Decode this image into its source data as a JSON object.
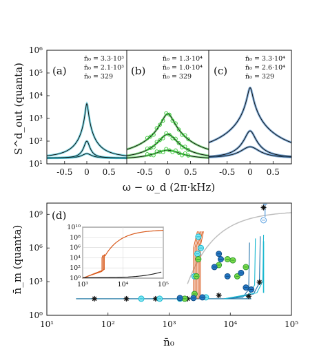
{
  "colors": {
    "cyan": "#19b8d0",
    "green": "#2ec42e",
    "blue": "#1f6fbf",
    "orange": "#d95a1c",
    "gray": "#bfbfbf",
    "black": "#111111"
  },
  "top": {
    "ylabel": "S^d_out (quanta)",
    "xlabel": "ω − ω_d (2π·kHz)",
    "xticks": [
      "-0.5",
      "0",
      "0.5"
    ],
    "yticks": [
      "10¹",
      "10²",
      "10³",
      "10⁴",
      "10⁵",
      "10⁶"
    ],
    "panels": [
      {
        "label": "(a)",
        "legend": [
          "n̄₀ = 3.3·10³",
          "n̄₀ = 2.1·10³",
          "n̄₀ = 329"
        ]
      },
      {
        "label": "(b)",
        "legend": [
          "n̄₀ = 1.3·10⁴",
          "n̄₀ = 1.0·10⁴",
          "n̄₀ = 329"
        ]
      },
      {
        "label": "(c)",
        "legend": [
          "n̄₀ = 3.3·10⁴",
          "n̄₀ = 2.6·10⁴",
          "n̄₀ = 329"
        ]
      }
    ]
  },
  "bottom": {
    "label": "(d)",
    "ylabel": "n̄_m (quanta)",
    "xlabel": "n̄₀",
    "xticks": [
      "10¹",
      "10²",
      "10³",
      "10⁴",
      "10⁵"
    ],
    "yticks": [
      "10⁰",
      "10³",
      "10⁶",
      "10⁹"
    ],
    "inset": {
      "xticks": [
        "10³",
        "10⁴",
        "10⁵"
      ],
      "yticks": [
        "10⁰",
        "10²",
        "10⁴",
        "10⁶",
        "10⁸",
        "10¹⁰"
      ]
    }
  },
  "chart_data": [
    {
      "type": "line",
      "title": "(a)",
      "xlabel": "ω − ω_d (2π·kHz)",
      "ylabel": "S^d_out (quanta)",
      "xlim": [
        -0.9,
        0.9
      ],
      "ylim_log10": [
        1,
        6
      ],
      "series": [
        {
          "name": "n̄₀ = 3.3·10³",
          "peak_log10": 3.65,
          "width": 0.03,
          "base_log10": 1.25
        },
        {
          "name": "n̄₀ = 2.1·10³",
          "peak_log10": 2.0,
          "width": 0.06,
          "base_log10": 1.25
        },
        {
          "name": "n̄₀ = 329",
          "peak_log10": 1.45,
          "width": 0.12,
          "base_log10": 1.25
        }
      ]
    },
    {
      "type": "line",
      "title": "(b)",
      "xlabel": "ω − ω_d (2π·kHz)",
      "xlim": [
        -0.9,
        0.9
      ],
      "ylim_log10": [
        1,
        6
      ],
      "series": [
        {
          "name": "n̄₀ = 1.3·10⁴",
          "peak_log10": 3.2,
          "width": 0.12,
          "base_log10": 1.2
        },
        {
          "name": "n̄₀ = 1.0·10⁴",
          "peak_log10": 2.3,
          "width": 0.18,
          "base_log10": 1.2
        },
        {
          "name": "n̄₀ = 329",
          "peak_log10": 1.6,
          "width": 0.3,
          "base_log10": 1.2
        }
      ]
    },
    {
      "type": "line",
      "title": "(c)",
      "xlabel": "ω − ω_d (2π·kHz)",
      "xlim": [
        -0.9,
        0.9
      ],
      "ylim_log10": [
        1,
        6
      ],
      "series": [
        {
          "name": "n̄₀ = 3.3·10⁴",
          "peak_log10": 4.35,
          "width": 0.05,
          "base_log10": 1.25
        },
        {
          "name": "n̄₀ = 2.6·10⁴",
          "peak_log10": 2.45,
          "width": 0.1,
          "base_log10": 1.25
        },
        {
          "name": "n̄₀ = 329",
          "peak_log10": 1.75,
          "width": 0.2,
          "base_log10": 1.25
        }
      ]
    },
    {
      "type": "scatter",
      "title": "(d)",
      "xlabel": "n̄₀",
      "ylabel": "n̄_m (quanta)",
      "xscale": "log",
      "yscale": "log",
      "xlim": [
        10,
        100000
      ],
      "ylim": [
        1,
        10000000000.0
      ],
      "series": [
        {
          "name": "",
          "kind": "star",
          "x": [
            60,
            200,
            600,
            2000,
            6500,
            20000,
            30000,
            35000
          ],
          "y": [
            30,
            30,
            30,
            30,
            60,
            50,
            900,
            4000000000.0
          ]
        },
        {
          "name": "",
          "kind": "cyan",
          "x": [
            350,
            700,
            1500,
            2600,
            2900,
            3000,
            3300,
            4000
          ],
          "y": [
            30,
            30,
            30,
            3000.0,
            300000.0,
            10000000.0,
            1000000.0,
            40
          ]
        },
        {
          "name": "",
          "kind": "green",
          "x": [
            1800,
            2600,
            2800,
            3000,
            6500,
            9000,
            11000,
            13000,
            18000
          ],
          "y": [
            30,
            80,
            3000.0,
            100000.0,
            30000.0,
            100000.0,
            80000.0,
            3000.0,
            20000.0
          ]
        },
        {
          "name": "",
          "kind": "blue",
          "x": [
            1500,
            2500,
            3500,
            5500,
            6500,
            7000,
            9000,
            15000,
            18000,
            22000
          ],
          "y": [
            35,
            35,
            40,
            20000.0,
            300000.0,
            100000.0,
            3000.0,
            6000.0,
            300,
            200
          ]
        },
        {
          "name": "",
          "kind": "lightblue",
          "x": [
            35000
          ],
          "y": [
            300000000.0
          ]
        }
      ]
    }
  ]
}
